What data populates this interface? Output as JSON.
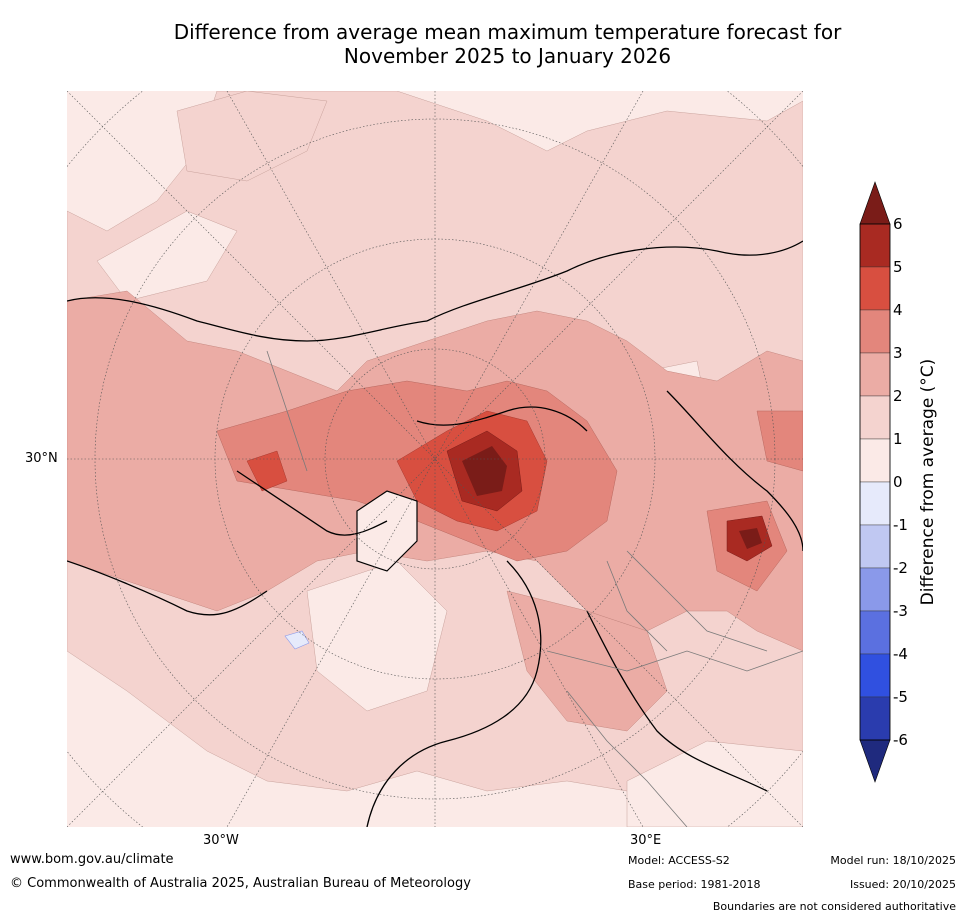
{
  "title": {
    "line1": "Difference from average mean maximum temperature forecast for",
    "line2": "November 2025 to January 2026"
  },
  "map": {
    "projection": "north-polar-stereographic",
    "region": "Northern Hemisphere (Arctic, Europe, Asia, North America)",
    "labels": {
      "lat_left": "30°N",
      "lon_bottom_left": "30°W",
      "lon_bottom_right": "30°E"
    },
    "colors": {
      "ocean_light": "#fbeae7",
      "c_0_1": "#fbeae7",
      "c_1_2": "#f4d3cf",
      "c_2_3": "#ebaca5",
      "c_3_4": "#e3867c",
      "c_4_5": "#d84f40",
      "c_5_6": "#a92a22",
      "c_6_plus": "#7a1c18",
      "cool_0_m1": "#e6eafb"
    }
  },
  "colorbar": {
    "title": "Difference from average (°C)",
    "ticks": [
      "6",
      "5",
      "4",
      "3",
      "2",
      "1",
      "0",
      "-1",
      "-2",
      "-3",
      "-4",
      "-5",
      "-6"
    ],
    "bands": [
      {
        "range": "5 to 6",
        "color": "#a92a22"
      },
      {
        "range": "4 to 5",
        "color": "#d84f40"
      },
      {
        "range": "3 to 4",
        "color": "#e3867c"
      },
      {
        "range": "2 to 3",
        "color": "#ebaca5"
      },
      {
        "range": "1 to 2",
        "color": "#f4d3cf"
      },
      {
        "range": "0 to 1",
        "color": "#fbeae7"
      },
      {
        "range": "-1 to 0",
        "color": "#e6eafb"
      },
      {
        "range": "-2 to -1",
        "color": "#c0c8f2"
      },
      {
        "range": "-3 to -2",
        "color": "#8a99ea"
      },
      {
        "range": "-4 to -3",
        "color": "#5b70e0"
      },
      {
        "range": "-5 to -4",
        "color": "#3050e0"
      },
      {
        "range": "-6 to -5",
        "color": "#2a3cae"
      }
    ],
    "top_arrow_color": "#7a1c18",
    "bottom_arrow_color": "#1f2a7e"
  },
  "footer": {
    "url": "www.bom.gov.au/climate",
    "copyright": "© Commonwealth of Australia 2025, Australian Bureau of Meteorology",
    "model": "Model: ACCESS-S2",
    "base_period": "Base period: 1981-2018",
    "model_run": "Model run: 18/10/2025",
    "issued": "Issued: 20/10/2025",
    "disclaimer": "Boundaries are not considered authoritative"
  }
}
